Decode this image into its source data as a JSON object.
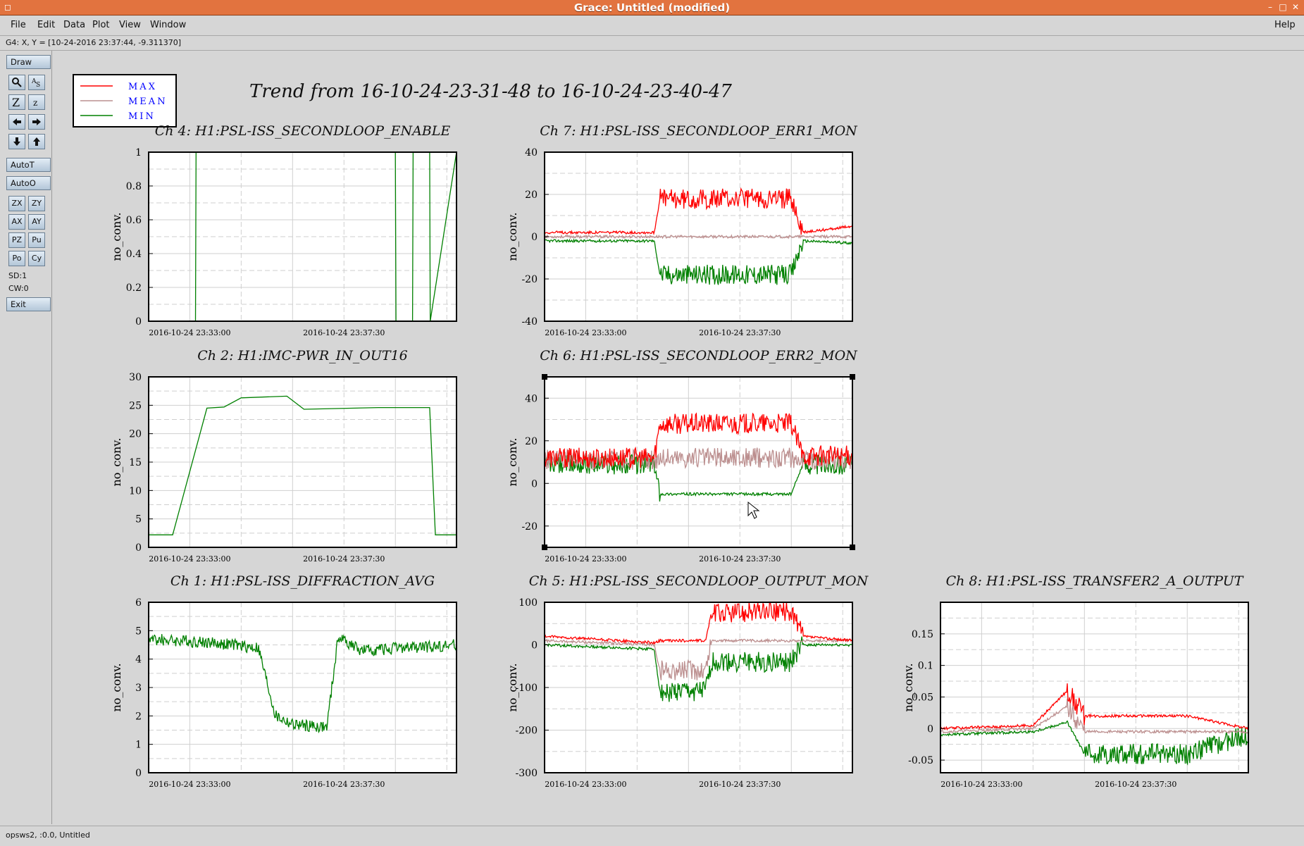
{
  "window": {
    "title": "Grace: Untitled (modified)"
  },
  "menu": {
    "file": "File",
    "edit": "Edit",
    "data": "Data",
    "plot": "Plot",
    "view": "View",
    "window": "Window",
    "help": "Help"
  },
  "locator": "G4: X, Y = [10-24-2016 23:37:44, -9.311370]",
  "toolbar": {
    "draw": "Draw",
    "autot": "AutoT",
    "autoo": "AutoO",
    "exit": "Exit",
    "zx": "ZX",
    "zy": "ZY",
    "ax": "AX",
    "ay": "AY",
    "pz": "PZ",
    "pu": "Pu",
    "po": "Po",
    "cy": "Cy",
    "sd": "SD:1",
    "cw": "CW:0"
  },
  "status": "opsws2, :0.0, Untitled",
  "colors": {
    "max": "#ff0000",
    "mean": "#bc8f8f",
    "min": "#008000",
    "legend_text": "#0000ff"
  },
  "figure": {
    "title": "Trend from 16-10-24-23-31-48 to 16-10-24-23-40-47",
    "legend": [
      "MAX",
      "MEAN",
      "MIN"
    ],
    "xticks": [
      "2016-10-24 23:33:00",
      "2016-10-24 23:37:30"
    ]
  },
  "chart_data": [
    {
      "type": "line",
      "title": "Ch 4: H1:PSL-ISS_SECONDLOOP_ENABLE",
      "ylabel": "no_conv.",
      "ylim": [
        0,
        1
      ],
      "yticks": [
        "0",
        "0.2",
        "0.4",
        "0.6",
        "0.8",
        "1"
      ],
      "x_range": [
        "2016-10-24 23:31:48",
        "2016-10-24 23:40:47"
      ],
      "series": [
        {
          "name": "MIN",
          "x": [
            "23:31:48",
            "23:33:10",
            "23:33:11",
            "23:39:00",
            "23:39:01",
            "23:39:30",
            "23:39:31",
            "23:40:00",
            "23:40:01",
            "23:40:47"
          ],
          "values": [
            0,
            0,
            1,
            1,
            0,
            0,
            1,
            1,
            0,
            1
          ]
        }
      ]
    },
    {
      "type": "line",
      "title": "Ch 7: H1:PSL-ISS_SECONDLOOP_ERR1_MON",
      "ylabel": "no_conv.",
      "ylim": [
        -40,
        40
      ],
      "yticks": [
        "-40",
        "-20",
        "0",
        "20",
        "40"
      ],
      "series": [
        {
          "name": "MAX",
          "x": [
            "23:31:48",
            "23:35:00",
            "23:35:10",
            "23:39:00",
            "23:39:20",
            "23:40:47"
          ],
          "values": [
            2,
            2,
            18,
            18,
            2,
            5
          ]
        },
        {
          "name": "MEAN",
          "x": [
            "23:31:48",
            "23:35:00",
            "23:35:10",
            "23:39:00",
            "23:39:20",
            "23:40:47"
          ],
          "values": [
            0,
            0,
            0,
            0,
            0,
            0
          ]
        },
        {
          "name": "MIN",
          "x": [
            "23:31:48",
            "23:35:00",
            "23:35:10",
            "23:39:00",
            "23:39:20",
            "23:40:47"
          ],
          "values": [
            -2,
            -2,
            -18,
            -18,
            -2,
            -3
          ]
        }
      ]
    },
    {
      "type": "line",
      "title": "Ch 2: H1:IMC-PWR_IN_OUT16",
      "ylabel": "no_conv.",
      "ylim": [
        0,
        30
      ],
      "yticks": [
        "0",
        "5",
        "10",
        "15",
        "20",
        "25",
        "30"
      ],
      "series": [
        {
          "name": "MIN",
          "x": [
            "23:31:48",
            "23:32:30",
            "23:33:30",
            "23:34:00",
            "23:34:30",
            "23:35:50",
            "23:36:20",
            "23:38:30",
            "23:39:20",
            "23:40:00",
            "23:40:10",
            "23:40:47"
          ],
          "values": [
            2.2,
            2.2,
            24.5,
            24.7,
            26.3,
            26.6,
            24.3,
            24.6,
            24.6,
            24.6,
            2.2,
            2.2
          ]
        }
      ]
    },
    {
      "type": "line",
      "title": "Ch 6: H1:PSL-ISS_SECONDLOOP_ERR2_MON",
      "ylabel": "no_conv.",
      "ylim": [
        -30,
        50
      ],
      "yticks": [
        "-20",
        "0",
        "20",
        "40"
      ],
      "series": [
        {
          "name": "MAX",
          "x": [
            "23:31:48",
            "23:35:00",
            "23:35:10",
            "23:39:00",
            "23:39:20",
            "23:40:47"
          ],
          "values": [
            12,
            12,
            28,
            28,
            13,
            13
          ]
        },
        {
          "name": "MEAN",
          "x": [
            "23:31:48",
            "23:35:00",
            "23:35:10",
            "23:39:00",
            "23:39:20",
            "23:40:47"
          ],
          "values": [
            11,
            11,
            12,
            12,
            11,
            11
          ]
        },
        {
          "name": "MIN",
          "x": [
            "23:31:48",
            "23:35:00",
            "23:35:10",
            "23:39:00",
            "23:39:20",
            "23:40:47"
          ],
          "values": [
            9,
            9,
            -5,
            -5,
            9,
            9
          ]
        }
      ]
    },
    {
      "type": "line",
      "title": "Ch 1: H1:PSL-ISS_DIFFRACTION_AVG",
      "ylabel": "no_conv.",
      "ylim": [
        0,
        6
      ],
      "yticks": [
        "0",
        "1",
        "2",
        "3",
        "4",
        "5",
        "6"
      ],
      "series": [
        {
          "name": "MIN",
          "x": [
            "23:31:48",
            "23:33:30",
            "23:35:00",
            "23:35:30",
            "23:36:00",
            "23:37:00",
            "23:37:20",
            "23:38:00",
            "23:40:47"
          ],
          "values": [
            4.7,
            4.6,
            4.4,
            2.0,
            1.7,
            1.6,
            4.8,
            4.3,
            4.5
          ]
        }
      ]
    },
    {
      "type": "line",
      "title": "Ch 5: H1:PSL-ISS_SECONDLOOP_OUTPUT_MON",
      "ylabel": "no_conv.",
      "ylim": [
        -300,
        100
      ],
      "yticks": [
        "-300",
        "-200",
        "-100",
        "0",
        "100"
      ],
      "series": [
        {
          "name": "MAX",
          "x": [
            "23:31:48",
            "23:35:00",
            "23:35:10",
            "23:36:30",
            "23:36:40",
            "23:39:00",
            "23:39:20",
            "23:40:47"
          ],
          "values": [
            20,
            5,
            10,
            10,
            75,
            80,
            20,
            10
          ]
        },
        {
          "name": "MEAN",
          "x": [
            "23:31:48",
            "23:35:00",
            "23:35:10",
            "23:36:30",
            "23:36:40",
            "23:39:00",
            "23:39:20",
            "23:40:47"
          ],
          "values": [
            10,
            0,
            -60,
            -60,
            10,
            10,
            10,
            10
          ]
        },
        {
          "name": "MIN",
          "x": [
            "23:31:48",
            "23:35:00",
            "23:35:10",
            "23:36:30",
            "23:36:40",
            "23:39:00",
            "23:39:20",
            "23:40:47"
          ],
          "values": [
            0,
            -10,
            -110,
            -110,
            -40,
            -40,
            0,
            0
          ]
        }
      ]
    },
    {
      "type": "line",
      "title": "Ch 8: H1:PSL-ISS_TRANSFER2_A_OUTPUT",
      "ylabel": "no_conv.",
      "ylim": [
        -0.07,
        0.2
      ],
      "yticks": [
        "-0.05",
        "0",
        "0.05",
        "0.1",
        "0.15"
      ],
      "series": [
        {
          "name": "MAX",
          "x": [
            "23:31:48",
            "23:34:30",
            "23:35:30",
            "23:36:00",
            "23:39:00",
            "23:40:47"
          ],
          "values": [
            0,
            0.005,
            0.06,
            0.02,
            0.02,
            0
          ]
        },
        {
          "name": "MEAN",
          "x": [
            "23:31:48",
            "23:34:30",
            "23:35:30",
            "23:36:00",
            "23:39:00",
            "23:40:47"
          ],
          "values": [
            -0.005,
            0,
            0.035,
            -0.005,
            -0.005,
            -0.005
          ]
        },
        {
          "name": "MIN",
          "x": [
            "23:31:48",
            "23:34:30",
            "23:35:30",
            "23:36:00",
            "23:39:00",
            "23:40:47"
          ],
          "values": [
            -0.01,
            -0.005,
            0.01,
            -0.04,
            -0.04,
            -0.01
          ]
        }
      ]
    }
  ]
}
